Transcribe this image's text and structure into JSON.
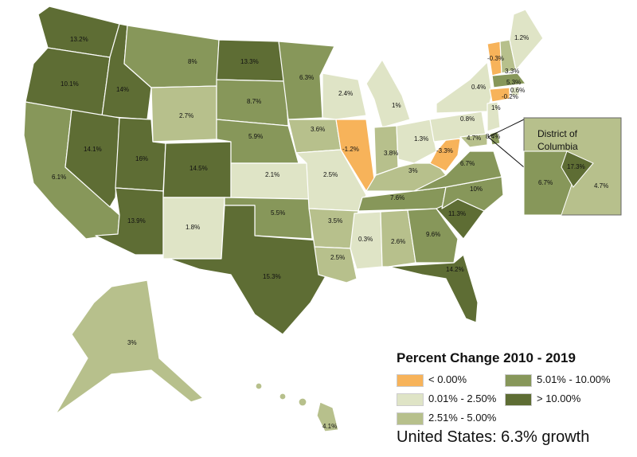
{
  "legend": {
    "title": "Percent Change 2010 - 2019",
    "items": [
      {
        "label": "< 0.00%",
        "color": "#f7b35a"
      },
      {
        "label": "0.01% - 2.50%",
        "color": "#dfe4c6"
      },
      {
        "label": "2.51% - 5.00%",
        "color": "#b7c08c"
      },
      {
        "label": "5.01% - 10.00%",
        "color": "#87975a"
      },
      {
        "label": "> 10.00%",
        "color": "#5e6d34"
      }
    ]
  },
  "summary": "United States: 6.3% growth",
  "inset": {
    "title_line1": "District of",
    "title_line2": "Columbia",
    "labels": {
      "va": "6.7%",
      "dc": "17.3%",
      "md": "4.7%"
    }
  },
  "states": {
    "WA": "13.2%",
    "OR": "10.1%",
    "CA": "6.1%",
    "ID": "14%",
    "NV": "14.1%",
    "UT": "16%",
    "AZ": "13.9%",
    "MT": "8%",
    "WY": "2.7%",
    "CO": "14.5%",
    "NM": "1.8%",
    "ND": "13.3%",
    "SD": "8.7%",
    "NE": "5.9%",
    "KS": "2.1%",
    "OK": "5.5%",
    "TX": "15.3%",
    "MN": "6.3%",
    "IA": "3.6%",
    "MO": "2.5%",
    "AR": "3.5%",
    "LA": "2.5%",
    "WI": "2.4%",
    "IL": "-1.2%",
    "MS": "0.3%",
    "MI": "1%",
    "IN": "3.8%",
    "KY": "3%",
    "TN": "7.6%",
    "AL": "2.6%",
    "OH": "1.3%",
    "GA": "9.6%",
    "FL": "14.2%",
    "SC": "11.3%",
    "NC": "10%",
    "VA": "6.7%",
    "WV": "-3.3%",
    "PA": "0.8%",
    "NY": "0.4%",
    "VT": "-0.3%",
    "NH": "3.3%",
    "ME": "1.2%",
    "MA": "5.3%",
    "RI": "0.6%",
    "CT": "-0.2%",
    "NJ": "1%",
    "DE": "8.4%",
    "MD": "4.7%",
    "AK": "3%",
    "HI": "4.1%"
  }
}
